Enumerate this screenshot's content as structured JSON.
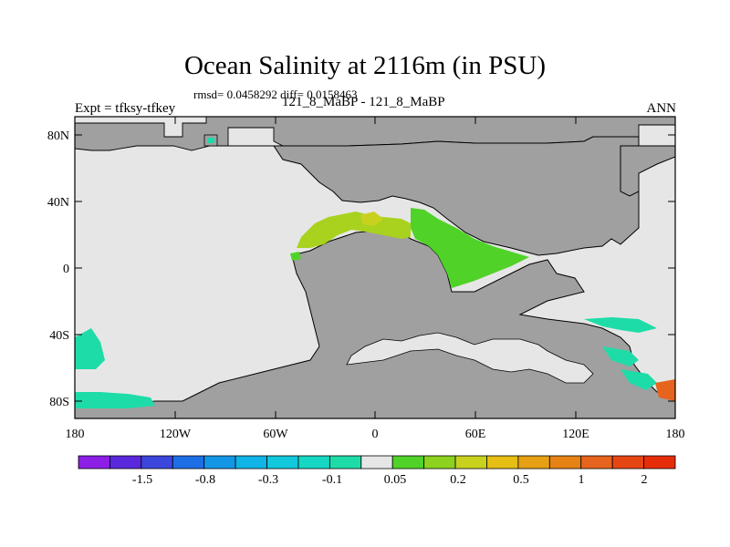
{
  "title": "Ocean Salinity at 2116m (in PSU)",
  "stats_line": "rmsd= 0.0458292 diff= 0.0158463",
  "experiment_label": "Expt = tfksy-tfkey",
  "cases_label": "121_8_MaBP - 121_8_MaBP",
  "period_label": "ANN",
  "map": {
    "longitude_ticks": [
      "180",
      "120W",
      "60W",
      "0",
      "60E",
      "120E",
      "180"
    ],
    "latitude_ticks": [
      "80N",
      "40N",
      "0",
      "40S",
      "80S"
    ],
    "land_color": "#a0a0a0",
    "ocean_background_color": "#e6e6e6"
  },
  "colorbar": {
    "colors": [
      "#8c1ee6",
      "#5a28dc",
      "#3c46dc",
      "#1e6ee6",
      "#1496e6",
      "#10b4e6",
      "#12c8dc",
      "#16d6c4",
      "#1edca8",
      "#e6e6e6",
      "#50d228",
      "#8cd21e",
      "#c8d21e",
      "#e6be14",
      "#e6a014",
      "#e68214",
      "#e6641e",
      "#e64614",
      "#e62d0a"
    ],
    "labels": [
      "-1.5",
      "-0.8",
      "-0.3",
      "-0.1",
      "0.05",
      "0.2",
      "0.5",
      "1",
      "2"
    ]
  }
}
